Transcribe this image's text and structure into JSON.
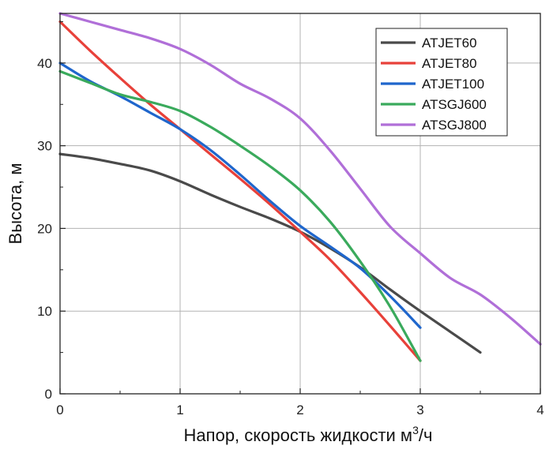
{
  "chart_data": {
    "type": "line",
    "title": "",
    "xlabel": "Напор, скорость жидкости м",
    "xlabel_sup": "3",
    "xlabel_suffix": "/ч",
    "ylabel": "Высота, м",
    "xlim": [
      0,
      4
    ],
    "ylim": [
      0,
      46
    ],
    "xticks": [
      0,
      1,
      2,
      3,
      4
    ],
    "yticks": [
      0,
      10,
      20,
      30,
      40
    ],
    "grid": true,
    "legend_position": "top-right",
    "series": [
      {
        "name": "ATJET60",
        "color": "#4a4a4a",
        "x": [
          0,
          0.25,
          0.5,
          0.75,
          1.0,
          1.25,
          1.5,
          1.75,
          2.0,
          2.25,
          2.5,
          2.75,
          3.0,
          3.25,
          3.5
        ],
        "y": [
          29,
          28.5,
          27.8,
          27,
          25.7,
          24.1,
          22.6,
          21.2,
          19.6,
          17.6,
          15.3,
          12.6,
          10.0,
          7.5,
          5.0
        ]
      },
      {
        "name": "ATJET80",
        "color": "#e8413a",
        "x": [
          0,
          0.25,
          0.5,
          0.75,
          1.0,
          1.25,
          1.5,
          1.75,
          2.0,
          2.25,
          2.5,
          2.75,
          3.0
        ],
        "y": [
          45,
          41.5,
          38.2,
          35,
          32,
          29,
          26,
          22.9,
          19.6,
          16.2,
          12.3,
          8.2,
          4.0
        ]
      },
      {
        "name": "ATJET100",
        "color": "#1f66cc",
        "x": [
          0,
          0.25,
          0.5,
          0.75,
          1.0,
          1.25,
          1.5,
          1.75,
          2.0,
          2.25,
          2.5,
          2.75,
          3.0
        ],
        "y": [
          40,
          37.8,
          36,
          34,
          32,
          29.5,
          26.5,
          23.3,
          20.3,
          17.8,
          15.2,
          11.8,
          8.0
        ]
      },
      {
        "name": "ATSGJ600",
        "color": "#3aaa5c",
        "x": [
          0,
          0.25,
          0.5,
          0.75,
          1.0,
          1.25,
          1.5,
          1.75,
          2.0,
          2.25,
          2.5,
          2.75,
          3.0
        ],
        "y": [
          39,
          37.6,
          36.2,
          35.3,
          34.2,
          32.3,
          30.0,
          27.5,
          24.6,
          20.8,
          16.0,
          10.5,
          4.0
        ]
      },
      {
        "name": "ATSGJ800",
        "color": "#b06fd8",
        "x": [
          0,
          0.25,
          0.5,
          0.75,
          1.0,
          1.25,
          1.5,
          1.75,
          2.0,
          2.25,
          2.5,
          2.75,
          3.0,
          3.25,
          3.5,
          3.75,
          4.0
        ],
        "y": [
          46,
          45,
          44,
          43,
          41.7,
          39.8,
          37.5,
          35.7,
          33.3,
          29.4,
          24.8,
          20.2,
          17.0,
          14.0,
          12.0,
          9.2,
          6.0
        ]
      }
    ]
  }
}
